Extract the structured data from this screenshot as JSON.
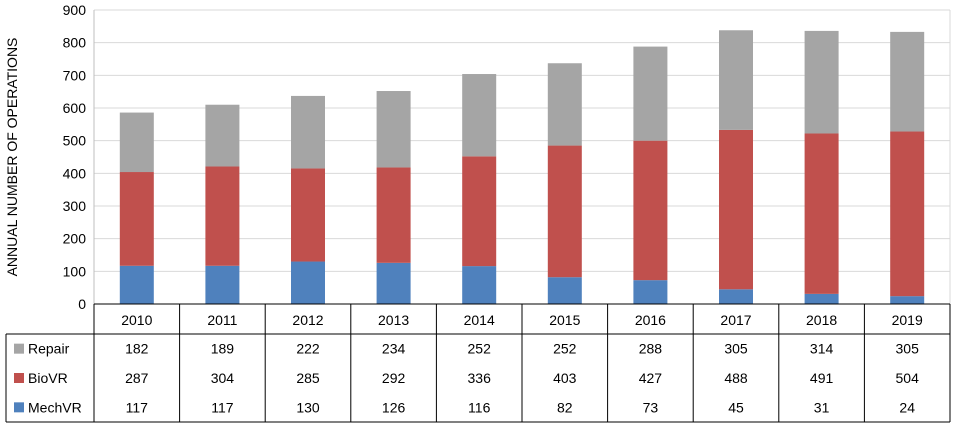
{
  "chart_data": {
    "type": "bar",
    "stacked": true,
    "categories": [
      "2010",
      "2011",
      "2012",
      "2013",
      "2014",
      "2015",
      "2016",
      "2017",
      "2018",
      "2019"
    ],
    "series": [
      {
        "name": "MechVR",
        "color": "#4f81bd",
        "values": [
          117,
          117,
          130,
          126,
          116,
          82,
          73,
          45,
          31,
          24
        ]
      },
      {
        "name": "BioVR",
        "color": "#c0504d",
        "values": [
          287,
          304,
          285,
          292,
          336,
          403,
          427,
          488,
          491,
          504
        ]
      },
      {
        "name": "Repair",
        "color": "#a5a5a5",
        "values": [
          182,
          189,
          222,
          234,
          252,
          252,
          288,
          305,
          314,
          305
        ]
      }
    ],
    "table_row_order": [
      "Repair",
      "BioVR",
      "MechVR"
    ],
    "ylabel": "ANNUAL NUMBER OF OPERATIONS",
    "xlabel": "",
    "ylim": [
      0,
      900
    ],
    "yticks": [
      "0",
      "100",
      "200",
      "300",
      "400",
      "500",
      "600",
      "700",
      "800",
      "900"
    ],
    "grid": true,
    "legend": "data-table-below"
  }
}
